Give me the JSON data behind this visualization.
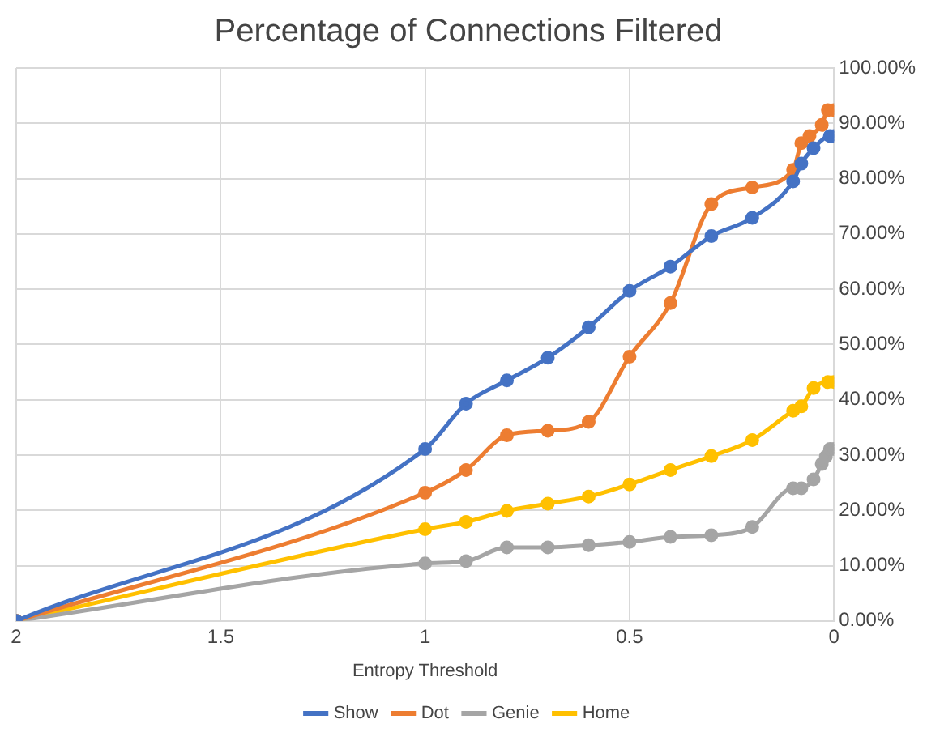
{
  "chart_data": {
    "type": "line",
    "title": "Percentage of Connections Filtered",
    "xlabel": "Entropy Threshold",
    "xlim": [
      2,
      0
    ],
    "xticks": [
      2,
      1.5,
      1,
      0.5,
      0
    ],
    "ylim": [
      0,
      100
    ],
    "yticks": [
      {
        "value": 0,
        "label": "0.00%"
      },
      {
        "value": 10,
        "label": "10.00%"
      },
      {
        "value": 20,
        "label": "20.00%"
      },
      {
        "value": 30,
        "label": "30.00%"
      },
      {
        "value": 40,
        "label": "40.00%"
      },
      {
        "value": 50,
        "label": "50.00%"
      },
      {
        "value": 60,
        "label": "60.00%"
      },
      {
        "value": 70,
        "label": "70.00%"
      },
      {
        "value": 80,
        "label": "80.00%"
      },
      {
        "value": 90,
        "label": "90.00%"
      },
      {
        "value": 100,
        "label": "100.00%"
      }
    ],
    "grid": true,
    "legend": "bottom",
    "marker": "circle",
    "line_style": "solid",
    "series": [
      {
        "name": "Show",
        "color": "#4472c4",
        "x": [
          2,
          1,
          0.9,
          0.8,
          0.7,
          0.6,
          0.5,
          0.4,
          0.3,
          0.2,
          0.1,
          0.08,
          0.05,
          0.01,
          0
        ],
        "values": [
          0,
          31.1,
          39.3,
          43.5,
          47.6,
          53.1,
          59.7,
          64.1,
          69.6,
          72.9,
          79.5,
          82.7,
          85.5,
          87.7,
          87.7
        ]
      },
      {
        "name": "Dot",
        "color": "#ed7d31",
        "x": [
          2,
          1,
          0.9,
          0.8,
          0.7,
          0.6,
          0.5,
          0.4,
          0.3,
          0.2,
          0.1,
          0.08,
          0.06,
          0.03,
          0.015,
          0
        ],
        "values": [
          0,
          23.2,
          27.3,
          33.6,
          34.4,
          36.0,
          47.8,
          57.5,
          75.4,
          78.4,
          81.6,
          86.4,
          87.7,
          89.7,
          92.4,
          92.4
        ]
      },
      {
        "name": "Genie",
        "color": "#a5a5a5",
        "x": [
          2,
          1,
          0.9,
          0.8,
          0.7,
          0.6,
          0.5,
          0.4,
          0.3,
          0.2,
          0.1,
          0.08,
          0.05,
          0.03,
          0.02,
          0.01,
          0
        ],
        "values": [
          0,
          10.4,
          10.8,
          13.3,
          13.3,
          13.7,
          14.3,
          15.2,
          15.5,
          17.0,
          24.0,
          24.0,
          25.6,
          28.4,
          29.7,
          31.1,
          31.1
        ]
      },
      {
        "name": "Home",
        "color": "#ffc000",
        "x": [
          2,
          1,
          0.9,
          0.8,
          0.7,
          0.6,
          0.5,
          0.4,
          0.3,
          0.2,
          0.1,
          0.08,
          0.05,
          0.015,
          0
        ],
        "values": [
          0,
          16.6,
          17.9,
          19.9,
          21.2,
          22.5,
          24.7,
          27.3,
          29.8,
          32.7,
          38.0,
          38.8,
          42.1,
          43.2,
          43.2
        ]
      }
    ]
  }
}
